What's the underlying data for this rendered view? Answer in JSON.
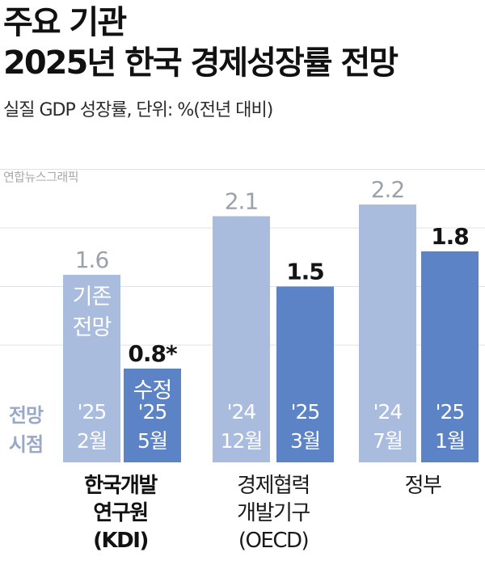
{
  "header": {
    "title_line1": "주요 기관",
    "title_line2": "2025년 한국 경제성장률 전망",
    "subtitle": "실질 GDP 성장률, 단위: %(전년 대비)",
    "credit": "연합뉴스그래픽"
  },
  "side_labels": {
    "line1": "전망",
    "line2": "시점"
  },
  "chart_data": {
    "type": "bar",
    "title": "2025년 한국 경제성장률 전망",
    "ylabel": "실질 GDP 성장률 (%)",
    "grid": true,
    "ylim": [
      0,
      2.7
    ],
    "categories": [
      "한국개발연구원(KDI) '25 2월",
      "한국개발연구원(KDI) '25 5월",
      "경제협력개발기구(OECD) '24 12월",
      "경제협력개발기구(OECD) '25 3월",
      "정부 '24 7월",
      "정부 '25 1월"
    ],
    "bars": [
      {
        "value": 1.6,
        "label": "1.6",
        "type": "old",
        "inner_text": [
          "기존",
          "전망"
        ],
        "period": [
          "'25",
          "2월"
        ]
      },
      {
        "value": 0.8,
        "label": "0.8*",
        "type": "new",
        "inner_text": [
          "수정"
        ],
        "period": [
          "'25",
          "5월"
        ]
      },
      {
        "value": 2.1,
        "label": "2.1",
        "type": "old",
        "inner_text": [],
        "period": [
          "'24",
          "12월"
        ]
      },
      {
        "value": 1.5,
        "label": "1.5",
        "type": "new",
        "inner_text": [],
        "period": [
          "'25",
          "3월"
        ]
      },
      {
        "value": 2.2,
        "label": "2.2",
        "type": "old",
        "inner_text": [],
        "period": [
          "'24",
          "7월"
        ]
      },
      {
        "value": 1.8,
        "label": "1.8",
        "type": "new",
        "inner_text": [],
        "period": [
          "'25",
          "1월"
        ]
      }
    ],
    "groups": [
      {
        "lines": [
          "한국개발",
          "연구원",
          "(KDI)"
        ],
        "bold": true
      },
      {
        "lines": [
          "경제협력",
          "개발기구",
          "(OECD)"
        ],
        "bold": false
      },
      {
        "lines": [
          "정부"
        ],
        "bold": false
      }
    ],
    "colors": {
      "old_bar": "#a9bcde",
      "new_bar": "#5b83c6",
      "old_value": "#9aa1ab",
      "new_value": "#141414",
      "grid": "#dde1e8",
      "inner_text": "#ffffff"
    }
  }
}
